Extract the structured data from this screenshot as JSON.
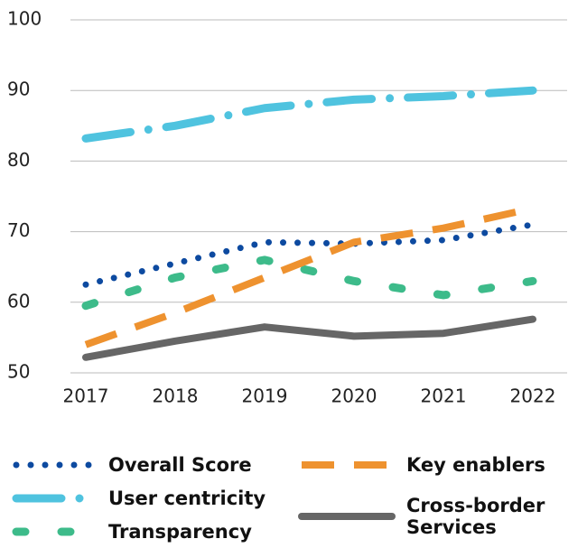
{
  "chart_data": {
    "type": "line",
    "categories": [
      "2017",
      "2018",
      "2019",
      "2020",
      "2021",
      "2022"
    ],
    "series": [
      {
        "name": "Overall Score",
        "color": "#0d4aa0",
        "values": [
          62.5,
          65.5,
          68.5,
          68.3,
          68.8,
          71
        ]
      },
      {
        "name": "User centricity",
        "color": "#4fc3df",
        "values": [
          83.2,
          85,
          87.5,
          88.7,
          89.2,
          90
        ]
      },
      {
        "name": "Transparency",
        "color": "#3dbb8a",
        "values": [
          59.5,
          63.5,
          66,
          63,
          61,
          63
        ]
      },
      {
        "name": "Key enablers",
        "color": "#ee922f",
        "values": [
          54,
          58.5,
          63.5,
          68.5,
          70.5,
          73.3
        ]
      },
      {
        "name": "Cross-border Services",
        "color": "#666666",
        "values": [
          52.2,
          54.5,
          56.5,
          55.2,
          55.6,
          57.6
        ]
      }
    ],
    "ylim": [
      50,
      100
    ],
    "yticks": [
      50,
      60,
      70,
      80,
      90,
      100
    ],
    "grid": true
  }
}
